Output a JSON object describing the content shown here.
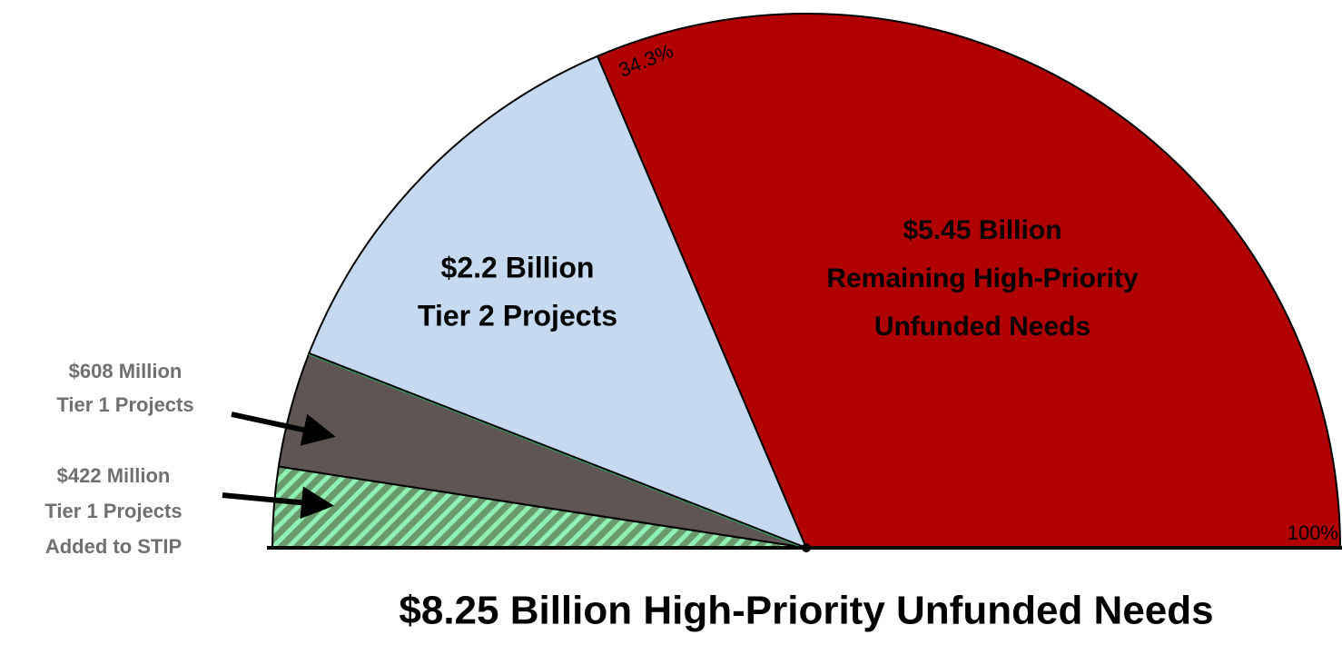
{
  "chart_data": {
    "type": "semipie",
    "title": "$8.25 Billion High-Priority Unfunded Needs",
    "values": [
      422,
      608,
      2200,
      5450
    ],
    "value_labels": [
      "$422 Million",
      "$608 Million",
      "$2.2 Billion",
      "$5.45 Billion"
    ],
    "labels": [
      [
        "Tier 1 Projects",
        "Added to STIP"
      ],
      [
        "Tier 1 Projects"
      ],
      [
        "Tier 2 Projects"
      ],
      [
        "Remaining High-Priority",
        "Unfunded Needs"
      ]
    ],
    "colors": [
      "#6a9a6c",
      "#5f5552",
      "#c5d9f1",
      "#b00000"
    ],
    "annotations": [
      "34.3%",
      "100%"
    ]
  }
}
